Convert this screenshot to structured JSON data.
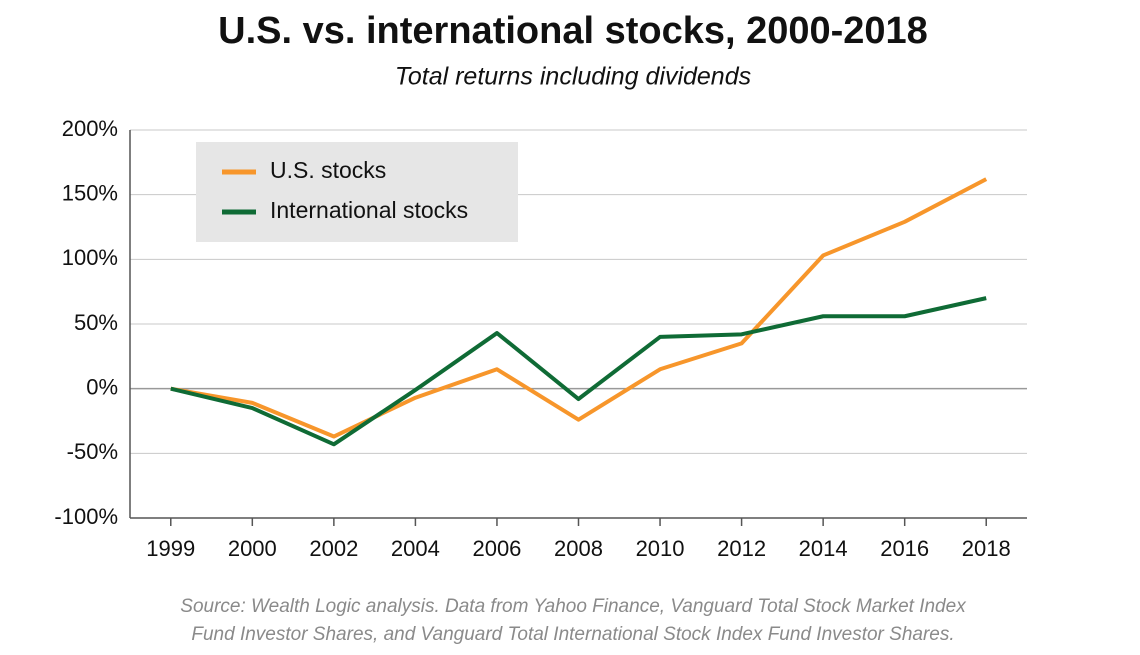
{
  "chart_data": {
    "type": "line",
    "title": "U.S. vs. international stocks, 2000-2018",
    "subtitle": "Total returns including dividends",
    "categories": [
      "1999",
      "2000",
      "2002",
      "2004",
      "2006",
      "2008",
      "2010",
      "2012",
      "2014",
      "2016",
      "2018"
    ],
    "series": [
      {
        "name": "U.S. stocks",
        "color": "#f7962b",
        "values": [
          0,
          -11,
          -37,
          -7,
          15,
          -24,
          15,
          35,
          103,
          129,
          162
        ]
      },
      {
        "name": "International stocks",
        "color": "#0f6b35",
        "values": [
          0,
          -15,
          -43,
          -1,
          43,
          -8,
          40,
          42,
          56,
          56,
          70
        ]
      }
    ],
    "ylim": [
      -100,
      200
    ],
    "yticks": [
      {
        "value": -100,
        "label": "-100%"
      },
      {
        "value": -50,
        "label": "-50%"
      },
      {
        "value": 0,
        "label": "0%"
      },
      {
        "value": 50,
        "label": "50%"
      },
      {
        "value": 100,
        "label": "100%"
      },
      {
        "value": 150,
        "label": "150%"
      },
      {
        "value": 200,
        "label": "200%"
      }
    ],
    "grid": true,
    "legend": "upper left",
    "source": [
      "Source: Wealth Logic analysis. Data from Yahoo Finance, Vanguard Total Stock Market Index",
      "Fund Investor Shares, and Vanguard Total International Stock Index Fund Investor Shares."
    ]
  }
}
